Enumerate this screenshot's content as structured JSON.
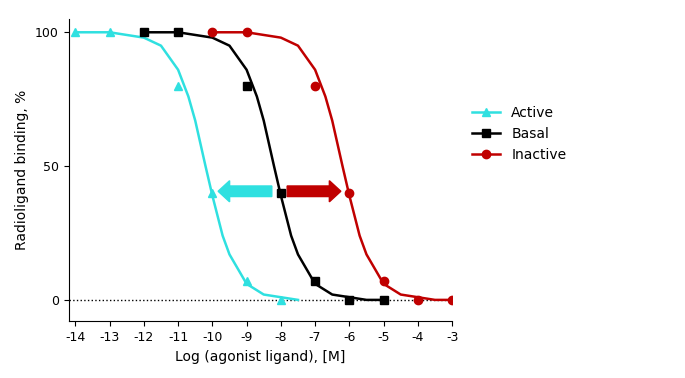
{
  "chart_data": {
    "type": "line",
    "x_label": "Log (agonist ligand), [M]",
    "y_label": "Radioligand binding, %",
    "xlim": [
      -14.2,
      -3
    ],
    "xticks": [
      -14,
      -13,
      -12,
      -11,
      -10,
      -9,
      -8,
      -7,
      -6,
      -5,
      -4,
      -3
    ],
    "ylim": [
      -8,
      105
    ],
    "yticks": [
      0,
      50,
      100
    ],
    "baseline": 0,
    "legend": "center left",
    "series": [
      {
        "name": "Active",
        "color": "#2fe0e0",
        "marker": "^",
        "line_style": "solid",
        "x": [
          -14,
          -13,
          -11,
          -10,
          -9,
          -8
        ],
        "values": [
          100,
          100,
          80,
          40,
          7,
          0
        ],
        "fit": {
          "x": [
            -14,
            -13,
            -12,
            -11.5,
            -11,
            -10.7,
            -10.5,
            -10.2,
            -10,
            -9.7,
            -9.5,
            -9,
            -8.5,
            -8,
            -7.5
          ],
          "values": [
            100,
            100,
            98,
            95,
            86,
            76,
            67,
            50,
            39,
            24,
            17,
            6,
            2,
            1,
            0
          ]
        }
      },
      {
        "name": "Basal",
        "color": "#000000",
        "marker": "s",
        "line_style": "solid",
        "x": [
          -12,
          -11,
          -9,
          -8,
          -7,
          -6,
          -5
        ],
        "values": [
          100,
          100,
          80,
          40,
          7,
          0,
          0
        ],
        "fit": {
          "x": [
            -12,
            -11,
            -10,
            -9.5,
            -9,
            -8.7,
            -8.5,
            -8.2,
            -8,
            -7.7,
            -7.5,
            -7,
            -6.5,
            -6,
            -5.5,
            -5
          ],
          "values": [
            100,
            100,
            98,
            95,
            86,
            76,
            67,
            50,
            39,
            24,
            17,
            6,
            2,
            1,
            0,
            0
          ]
        }
      },
      {
        "name": "Inactive",
        "color": "#c00000",
        "marker": "o",
        "line_style": "solid",
        "x": [
          -10,
          -9,
          -7,
          -6,
          -5,
          -4,
          -3
        ],
        "values": [
          100,
          100,
          80,
          40,
          7,
          0,
          0
        ],
        "fit": {
          "x": [
            -10,
            -9,
            -8,
            -7.5,
            -7,
            -6.7,
            -6.5,
            -6.2,
            -6,
            -5.7,
            -5.5,
            -5,
            -4.5,
            -4,
            -3.5,
            -3
          ],
          "values": [
            100,
            100,
            98,
            95,
            86,
            76,
            67,
            50,
            39,
            24,
            17,
            6,
            2,
            1,
            0,
            0
          ]
        }
      }
    ]
  }
}
